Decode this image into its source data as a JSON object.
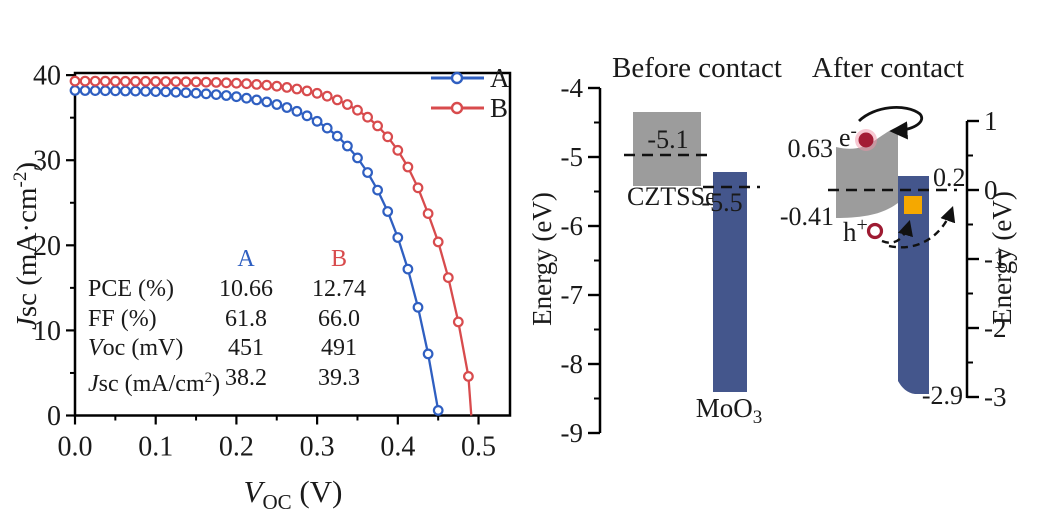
{
  "figure": {
    "background": "#ffffff",
    "panels": [
      "jv-curves",
      "energy-band-diagram"
    ]
  },
  "chart_data": [
    {
      "type": "line",
      "title": "",
      "xlabel": "Voc (V)",
      "ylabel": "Jsc (mA·cm-2)",
      "xlabel_tspans": {
        "v": "V",
        "sub": "OC",
        "unit": " (V)"
      },
      "ylabel_tspans": {
        "j": "J",
        "mid": "sc (mA·cm",
        "sup": "-2",
        "end": ")"
      },
      "xlim": [
        0,
        0.539
      ],
      "ylim": [
        0,
        40.25
      ],
      "grid": false,
      "x_ticks": [
        {
          "v": 0.0,
          "label": "0.0"
        },
        {
          "v": 0.1,
          "label": "0.1"
        },
        {
          "v": 0.2,
          "label": "0.2"
        },
        {
          "v": 0.3,
          "label": "0.3"
        },
        {
          "v": 0.4,
          "label": "0.4"
        },
        {
          "v": 0.5,
          "label": "0.5"
        }
      ],
      "x_minor_ticks": [
        0.05,
        0.15,
        0.25,
        0.35,
        0.45
      ],
      "y_ticks": [
        {
          "v": 0,
          "label": "0"
        },
        {
          "v": 10,
          "label": "10"
        },
        {
          "v": 20,
          "label": "20"
        },
        {
          "v": 30,
          "label": "30"
        },
        {
          "v": 40,
          "label": "40"
        }
      ],
      "y_minor_ticks": [
        5,
        15,
        25,
        35
      ],
      "legend": {
        "position": "top-right",
        "entries": [
          {
            "label": "A",
            "color": "#2f5fc1"
          },
          {
            "label": "B",
            "color": "#d84b4d"
          }
        ]
      },
      "series": [
        {
          "name": "A",
          "color": "#2f5fc1",
          "marker": "open-circle",
          "points": [
            [
              0,
              38.2
            ],
            [
              0.0125,
              38.19
            ],
            [
              0.025,
              38.18
            ],
            [
              0.0375,
              38.17
            ],
            [
              0.05,
              38.16
            ],
            [
              0.0625,
              38.14
            ],
            [
              0.075,
              38.12
            ],
            [
              0.0875,
              38.1
            ],
            [
              0.1,
              38.07
            ],
            [
              0.1125,
              38.04
            ],
            [
              0.125,
              37.99
            ],
            [
              0.1375,
              37.94
            ],
            [
              0.15,
              37.88
            ],
            [
              0.1625,
              37.8
            ],
            [
              0.175,
              37.71
            ],
            [
              0.1875,
              37.6
            ],
            [
              0.2,
              37.46
            ],
            [
              0.2125,
              37.29
            ],
            [
              0.225,
              37.09
            ],
            [
              0.2375,
              36.85
            ],
            [
              0.25,
              36.55
            ],
            [
              0.2625,
              36.19
            ],
            [
              0.275,
              35.75
            ],
            [
              0.2875,
              35.22
            ],
            [
              0.3,
              34.57
            ],
            [
              0.3125,
              33.78
            ],
            [
              0.325,
              32.83
            ],
            [
              0.3375,
              31.67
            ],
            [
              0.35,
              30.27
            ],
            [
              0.3625,
              28.56
            ],
            [
              0.375,
              26.49
            ],
            [
              0.3875,
              23.97
            ],
            [
              0.4,
              20.92
            ],
            [
              0.4125,
              17.21
            ],
            [
              0.425,
              12.71
            ],
            [
              0.4375,
              7.24
            ],
            [
              0.45,
              0.6
            ],
            [
              0.451,
              0
            ]
          ]
        },
        {
          "name": "B",
          "color": "#d84b4d",
          "marker": "open-circle",
          "points": [
            [
              0,
              39.3
            ],
            [
              0.0125,
              39.3
            ],
            [
              0.025,
              39.3
            ],
            [
              0.0375,
              39.29
            ],
            [
              0.05,
              39.29
            ],
            [
              0.0625,
              39.28
            ],
            [
              0.075,
              39.28
            ],
            [
              0.0875,
              39.27
            ],
            [
              0.1,
              39.26
            ],
            [
              0.1125,
              39.25
            ],
            [
              0.125,
              39.24
            ],
            [
              0.1375,
              39.22
            ],
            [
              0.15,
              39.2
            ],
            [
              0.1625,
              39.17
            ],
            [
              0.175,
              39.14
            ],
            [
              0.1875,
              39.1
            ],
            [
              0.2,
              39.05
            ],
            [
              0.2125,
              38.99
            ],
            [
              0.225,
              38.91
            ],
            [
              0.2375,
              38.82
            ],
            [
              0.25,
              38.7
            ],
            [
              0.2625,
              38.56
            ],
            [
              0.275,
              38.37
            ],
            [
              0.2875,
              38.15
            ],
            [
              0.3,
              37.87
            ],
            [
              0.3125,
              37.52
            ],
            [
              0.325,
              37.09
            ],
            [
              0.3375,
              36.55
            ],
            [
              0.35,
              35.88
            ],
            [
              0.3625,
              35.06
            ],
            [
              0.375,
              34.03
            ],
            [
              0.3875,
              32.75
            ],
            [
              0.4,
              31.17
            ],
            [
              0.4125,
              29.2
            ],
            [
              0.425,
              26.76
            ],
            [
              0.4375,
              23.73
            ],
            [
              0.45,
              20.4
            ],
            [
              0.4625,
              16.2
            ],
            [
              0.475,
              11.0
            ],
            [
              0.4875,
              4.6
            ],
            [
              0.491,
              0
            ]
          ]
        }
      ],
      "inset_table": {
        "headers": [
          {
            "label": "A",
            "color": "#2f5fc1"
          },
          {
            "label": "B",
            "color": "#d84b4d"
          }
        ],
        "rows": [
          {
            "label": "PCE (%)",
            "label_parts": [
              {
                "t": "PCE (%)"
              }
            ],
            "a": "10.66",
            "b": "12.74"
          },
          {
            "label": "FF (%)",
            "label_parts": [
              {
                "t": "FF (%)"
              }
            ],
            "a": "61.8",
            "b": "66.0"
          },
          {
            "label": "Voc (mV)",
            "label_parts": [
              {
                "t": "V",
                "i": true
              },
              {
                "t": "oc (mV)"
              }
            ],
            "a": "451",
            "b": "491"
          },
          {
            "label": "Jsc (mA/cm2)",
            "label_parts": [
              {
                "t": "J",
                "i": true
              },
              {
                "t": "sc (mA/cm"
              },
              {
                "t": "2",
                "sup": true
              },
              {
                "t": ")"
              }
            ],
            "a": "38.2",
            "b": "39.3"
          }
        ]
      }
    },
    {
      "type": "band-diagram",
      "before": {
        "title": "Before contact",
        "cztsse": {
          "name": "CZTSSe",
          "band_top_eV": -4.36,
          "band_bottom_eV": -5.42,
          "fermi_eV": -5.1,
          "fermi_label": "-5.1",
          "color": "#9c9c9c"
        },
        "moo3": {
          "name_main": "MoO",
          "name_sub": "3",
          "top_eV": -5.22,
          "bottom_eV": -8.4,
          "wf_eV": -5.5,
          "wf_label": "-5.5",
          "color": "#44568c"
        }
      },
      "after": {
        "title": "After contact",
        "cztsse_band": {
          "cbm_eV": 0.63,
          "cbm_label": "0.63",
          "vbm_eV": -0.41,
          "vbm_label": "-0.41",
          "color": "#9c9c9c"
        },
        "moo3_band": {
          "top_eV": 0.2,
          "top_label": "0.2",
          "bottom_eV": -2.9,
          "bottom_label": "-2.9",
          "color": "#44568c"
        },
        "defect_state": {
          "color": "#f5a800"
        },
        "electron": {
          "sym": "e",
          "sup": "-",
          "color": "#9e1b32"
        },
        "hole": {
          "sym": "h",
          "sup": "+",
          "color": "#9e1b32"
        },
        "fermi_eV": 0
      },
      "left_axis": {
        "label": "Energy (eV)",
        "range": [
          -9,
          -4
        ],
        "major_ticks": [
          {
            "v": -4,
            "label": "-4"
          },
          {
            "v": -5,
            "label": "-5"
          },
          {
            "v": -6,
            "label": "-6"
          },
          {
            "v": -7,
            "label": "-7"
          },
          {
            "v": -8,
            "label": "-8"
          },
          {
            "v": -9,
            "label": "-9"
          }
        ],
        "minor_ticks": [
          -4.5,
          -5.5,
          -6.5,
          -7.5,
          -8.5
        ]
      },
      "right_axis": {
        "label": "Energy (eV)",
        "range": [
          -3,
          1
        ],
        "major_ticks": [
          {
            "v": 1,
            "label": "1"
          },
          {
            "v": 0,
            "label": "0"
          },
          {
            "v": -1,
            "label": "-1"
          },
          {
            "v": -2,
            "label": "-2"
          },
          {
            "v": -3,
            "label": "-3"
          }
        ],
        "minor_ticks": [
          0.5,
          -0.5,
          -1.5,
          -2.5
        ]
      }
    }
  ]
}
